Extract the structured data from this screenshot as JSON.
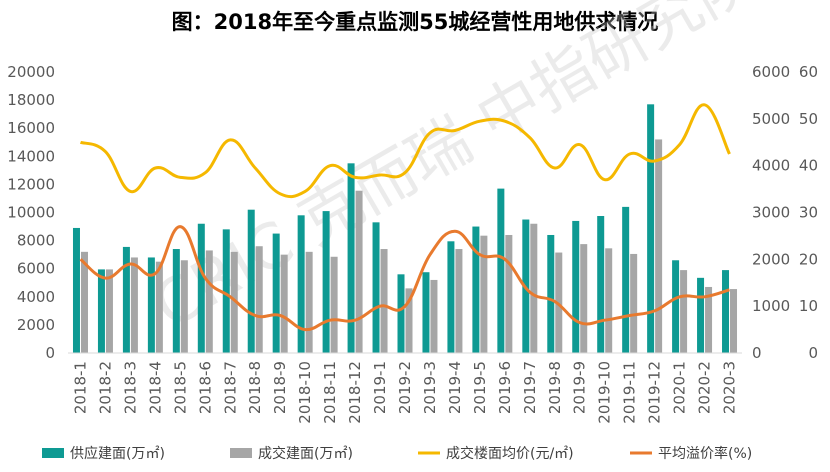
{
  "title": "图：2018年至今重点监测55城经营性用地供求情况",
  "watermark": "CRIC 克而瑞 中指研究院",
  "chart_data": {
    "type": "bar",
    "title": "图：2018年至今重点监测55城经营性用地供求情况",
    "categories": [
      "2018-1",
      "2018-2",
      "2018-3",
      "2018-4",
      "2018-5",
      "2018-6",
      "2018-7",
      "2018-8",
      "2018-9",
      "2018-10",
      "2018-11",
      "2018-12",
      "2019-1",
      "2019-2",
      "2019-3",
      "2019-4",
      "2019-5",
      "2019-6",
      "2019-7",
      "2019-8",
      "2019-9",
      "2019-10",
      "2019-11",
      "2019-12",
      "2020-1",
      "2020-2",
      "2020-3"
    ],
    "left_axis": {
      "ylim": [
        0,
        20000
      ],
      "ticks": [
        "0",
        "2000",
        "4000",
        "6000",
        "8000",
        "10000",
        "12000",
        "14000",
        "16000",
        "18000",
        "20000"
      ]
    },
    "right_axis_price": {
      "ylim": [
        0,
        6000
      ],
      "ticks": [
        "0",
        "1000",
        "2000",
        "3000",
        "4000",
        "5000",
        "6000"
      ]
    },
    "right_axis_rate": {
      "ylim": [
        0,
        60
      ],
      "ticks": [
        "0",
        "10",
        "20",
        "30",
        "40",
        "50",
        "60"
      ]
    },
    "series": [
      {
        "name": "供应建面(万㎡)",
        "type": "bar",
        "axis": "left",
        "color": "#0e9a93",
        "values": [
          8900,
          5950,
          7550,
          6800,
          7400,
          9200,
          8800,
          10200,
          8500,
          9800,
          10100,
          13500,
          9300,
          5600,
          5750,
          7950,
          9000,
          11700,
          9500,
          8400,
          9400,
          9750,
          10400,
          17700,
          6600,
          5350,
          5900
        ]
      },
      {
        "name": "成交建面(万㎡)",
        "type": "bar",
        "axis": "left",
        "color": "#a6a6a6",
        "values": [
          7200,
          5950,
          6800,
          6500,
          6600,
          7300,
          7200,
          7600,
          7000,
          7200,
          6850,
          11550,
          7400,
          4600,
          5200,
          7400,
          8350,
          8400,
          9200,
          7150,
          7750,
          7450,
          7050,
          15200,
          5900,
          4700,
          4550
        ]
      },
      {
        "name": "成交楼面均价(元/㎡)",
        "type": "line",
        "axis": "right_price",
        "color": "#f5b800",
        "values": [
          4500,
          4300,
          3450,
          3950,
          3750,
          3850,
          4550,
          3950,
          3400,
          3450,
          4000,
          3750,
          3800,
          3850,
          4700,
          4750,
          4950,
          4950,
          4600,
          3950,
          4450,
          3700,
          4250,
          4100,
          4450,
          5300,
          4250
        ]
      },
      {
        "name": "平均溢价率(%)",
        "type": "line",
        "axis": "right_rate",
        "color": "#e87a2e",
        "values": [
          20,
          16,
          19,
          17,
          27,
          16,
          12,
          8,
          8,
          5,
          7,
          7,
          10,
          10,
          21,
          26,
          21,
          20,
          13,
          11,
          6.5,
          7,
          8,
          9,
          12,
          12,
          13.5
        ]
      }
    ],
    "legend_position": "bottom",
    "grid": false
  }
}
